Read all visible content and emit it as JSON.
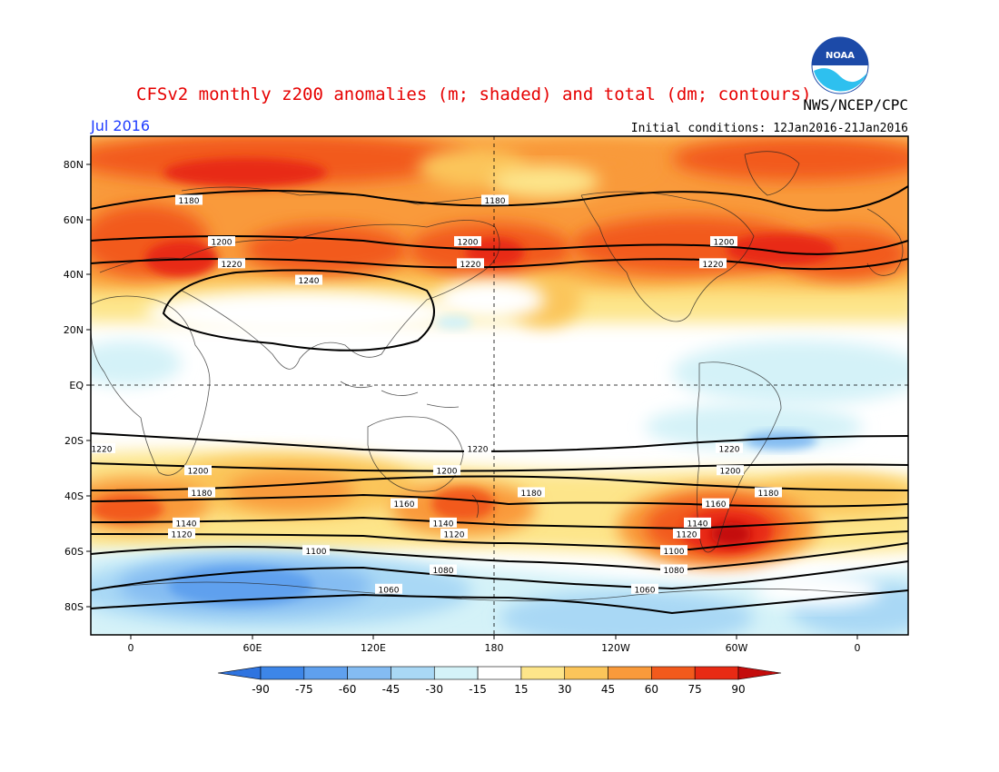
{
  "header": {
    "title": "CFSv2 monthly z200 anomalies (m; shaded) and total (dm; contours)",
    "agency": "NWS/NCEP/CPC",
    "month": "Jul 2016",
    "initial_conditions": "Initial conditions: 12Jan2016-21Jan2016"
  },
  "logo": {
    "name": "noaa-logo",
    "text": "NOAA"
  },
  "map": {
    "lat_labels": [
      "80N",
      "60N",
      "40N",
      "20N",
      "EQ",
      "20S",
      "40S",
      "60S",
      "80S"
    ],
    "lon_labels": [
      "0",
      "60E",
      "120E",
      "180",
      "120W",
      "60W",
      "0"
    ],
    "projection": "cylindrical equidistant, centered on 180"
  },
  "colorbar": {
    "labels": [
      "-90",
      "-75",
      "-60",
      "-45",
      "-30",
      "-15",
      "15",
      "30",
      "45",
      "60",
      "75",
      "90"
    ],
    "colors": [
      "#2f74e0",
      "#3d86e8",
      "#5fa0ee",
      "#84bcf2",
      "#a9d8f5",
      "#d4f2f8",
      "#ffffff",
      "#fde58a",
      "#fbc55a",
      "#f99a3b",
      "#f25a1c",
      "#e82a14",
      "#c40c0c"
    ]
  },
  "contours": [
    {
      "label": "1180",
      "lat": 67
    },
    {
      "label": "1200",
      "lat": 52
    },
    {
      "label": "1220",
      "lat": 44
    },
    {
      "label": "1240",
      "lat": 38
    },
    {
      "label": "1220",
      "lat": -23
    },
    {
      "label": "1200",
      "lat": -31
    },
    {
      "label": "1180",
      "lat": -39
    },
    {
      "label": "1160",
      "lat": -43
    },
    {
      "label": "1140",
      "lat": -50
    },
    {
      "label": "1120",
      "lat": -54
    },
    {
      "label": "1100",
      "lat": -60
    },
    {
      "label": "1080",
      "lat": -67
    },
    {
      "label": "1060",
      "lat": -74
    }
  ]
}
